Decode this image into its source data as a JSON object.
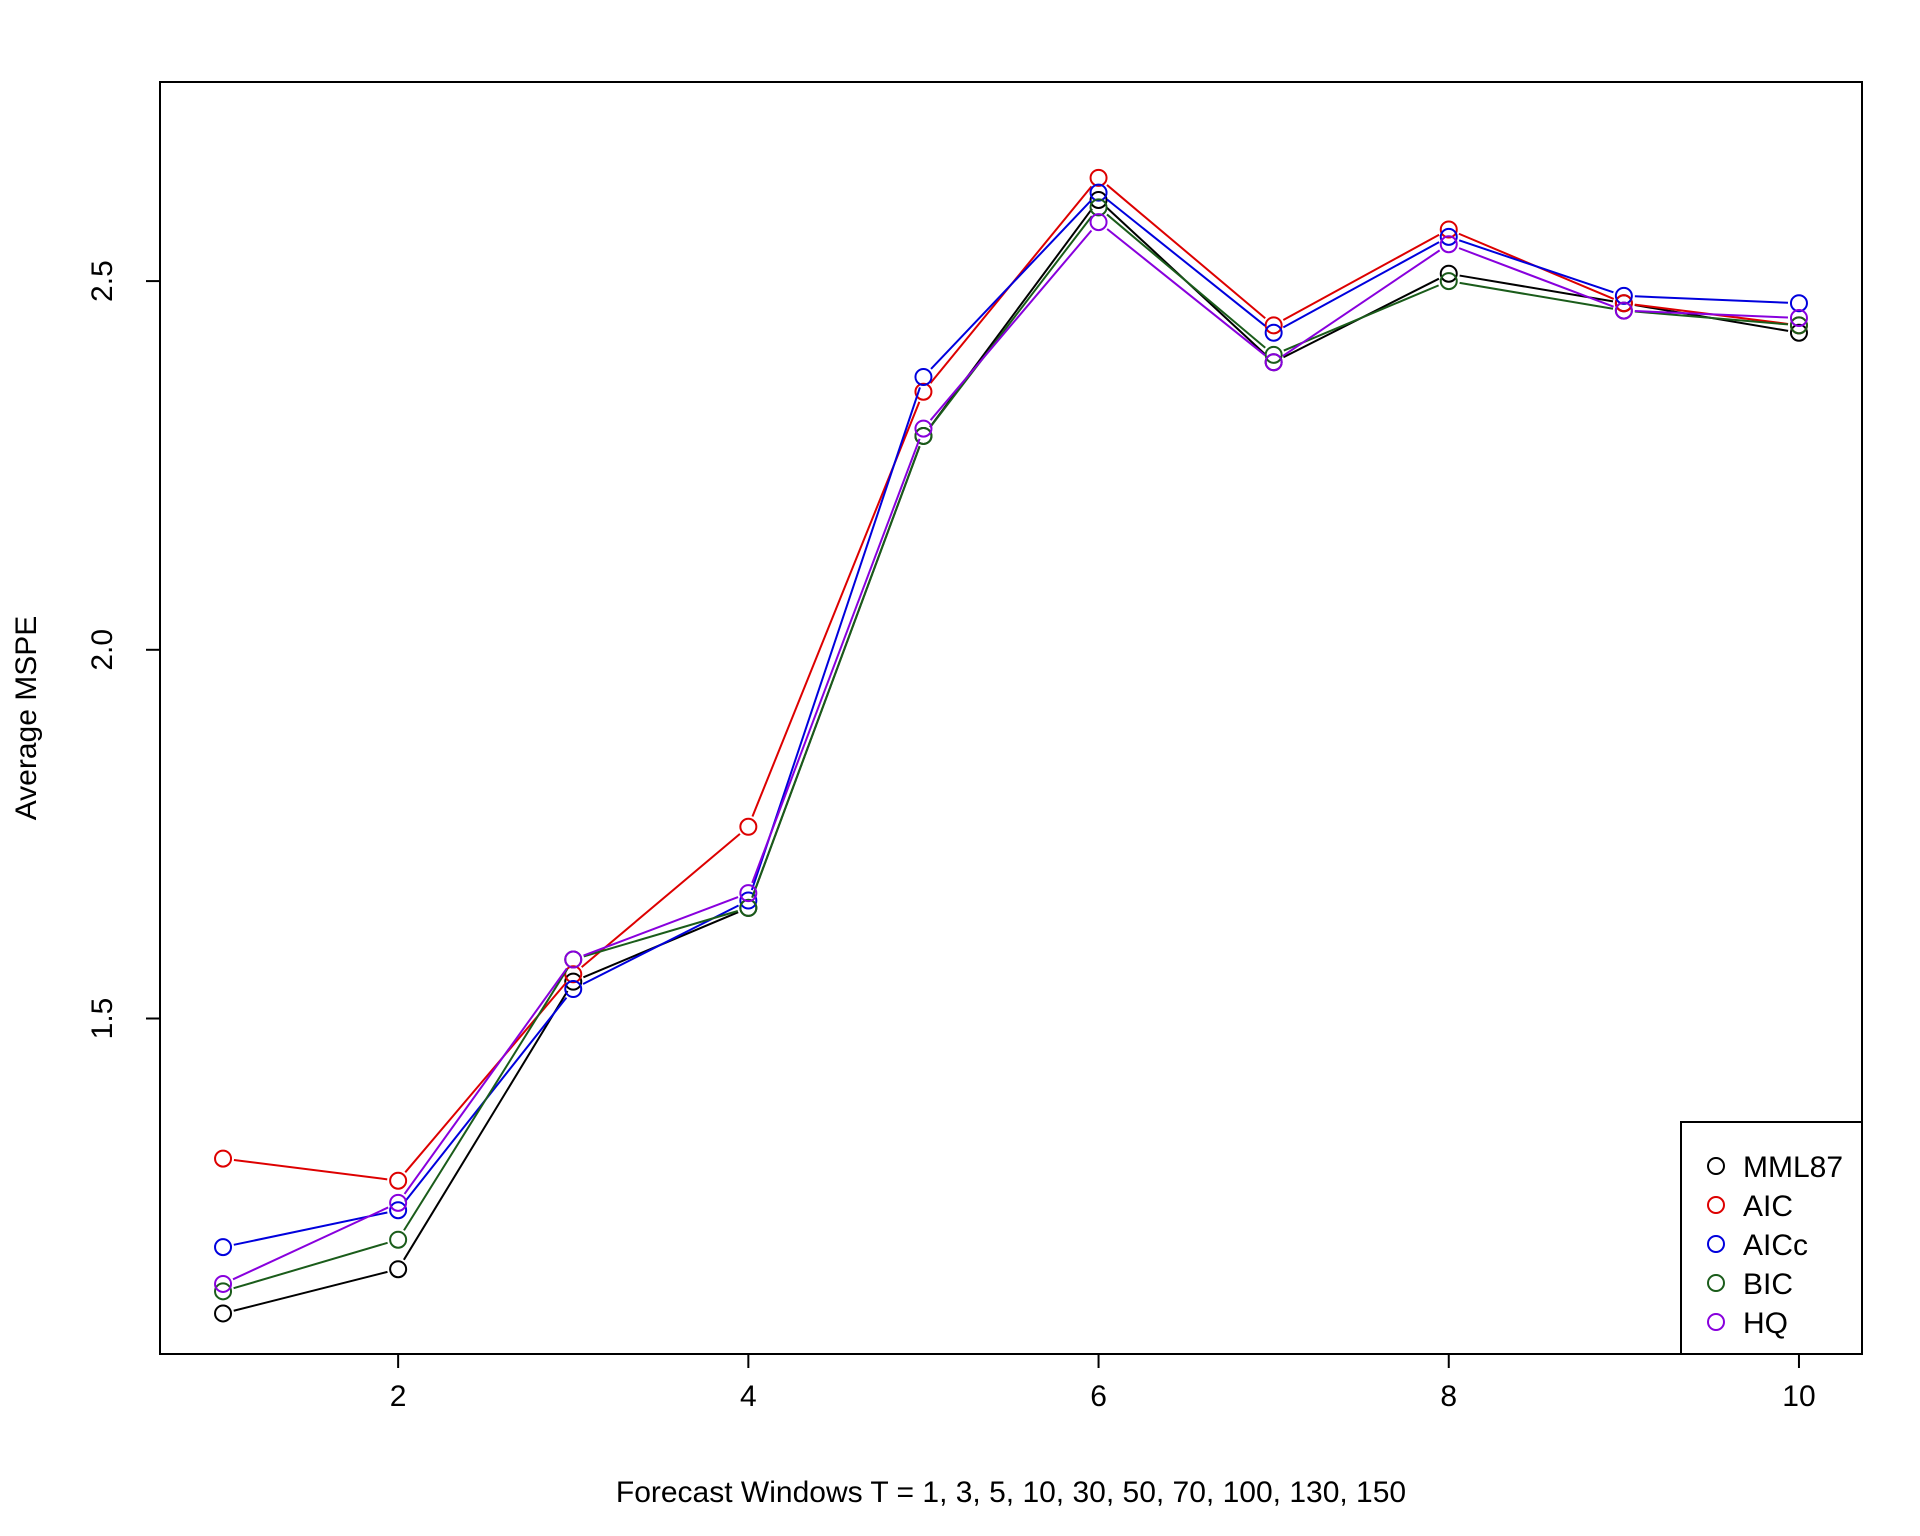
{
  "chart_data": {
    "type": "line",
    "title": "",
    "xlabel": "Forecast Windows T = 1, 3, 5, 10, 30, 50, 70, 100, 130, 150",
    "ylabel": "Average MSPE",
    "x": [
      1,
      2,
      3,
      4,
      5,
      6,
      7,
      8,
      9,
      10
    ],
    "xlim": [
      0.64,
      10.36
    ],
    "ylim": [
      1.045,
      2.77
    ],
    "xticks": [
      2,
      4,
      6,
      8,
      10
    ],
    "xtick_labels": [
      "2",
      "4",
      "6",
      "8",
      "10"
    ],
    "yticks": [
      1.5,
      2.0,
      2.5
    ],
    "ytick_labels": [
      "1.5",
      "2.0",
      "2.5"
    ],
    "grid": false,
    "legend_position": "bottom-right",
    "markers": "open-circle",
    "series": [
      {
        "name": "MML87",
        "color": "#000000",
        "values": [
          1.1,
          1.16,
          1.55,
          1.65,
          2.29,
          2.61,
          2.39,
          2.51,
          2.47,
          2.43
        ]
      },
      {
        "name": "AIC",
        "color": "#dd0000",
        "values": [
          1.31,
          1.28,
          1.56,
          1.76,
          2.35,
          2.64,
          2.44,
          2.57,
          2.47,
          2.44
        ]
      },
      {
        "name": "AICc",
        "color": "#0000dd",
        "values": [
          1.19,
          1.24,
          1.54,
          1.66,
          2.37,
          2.62,
          2.43,
          2.56,
          2.48,
          2.47
        ]
      },
      {
        "name": "BIC",
        "color": "#1a5c1a",
        "values": [
          1.13,
          1.2,
          1.58,
          1.65,
          2.29,
          2.6,
          2.4,
          2.5,
          2.46,
          2.44
        ]
      },
      {
        "name": "HQ",
        "color": "#8800dd",
        "values": [
          1.14,
          1.25,
          1.58,
          1.67,
          2.3,
          2.58,
          2.39,
          2.55,
          2.46,
          2.45
        ]
      }
    ]
  }
}
